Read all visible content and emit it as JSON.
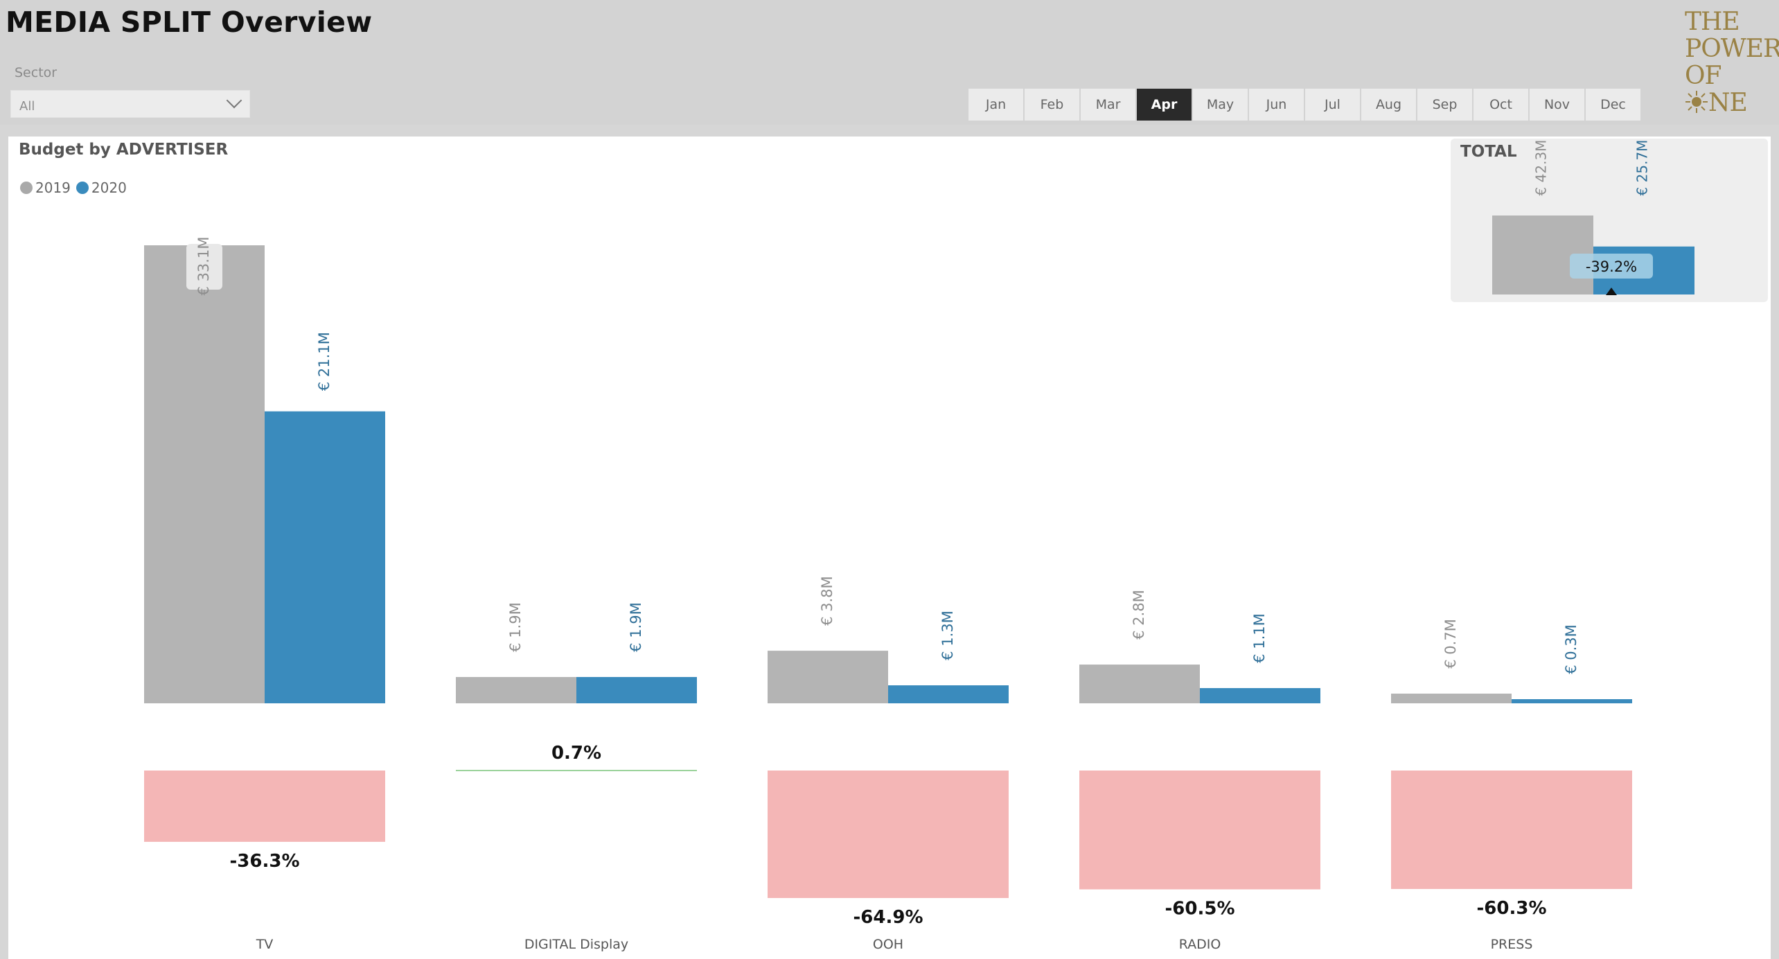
{
  "header": {
    "title": "MEDIA SPLIT Overview",
    "sector_label": "Sector",
    "sector_value": "All",
    "months": [
      "Jan",
      "Feb",
      "Mar",
      "Apr",
      "May",
      "Jun",
      "Jul",
      "Aug",
      "Sep",
      "Oct",
      "Nov",
      "Dec"
    ],
    "active_month": "Apr",
    "logo_lines": [
      "THE",
      "POWER",
      "OF",
      "NE"
    ]
  },
  "legend": {
    "items": [
      {
        "label": "2019",
        "color": "#a9a9a9"
      },
      {
        "label": "2020",
        "color": "#3a8bbd"
      }
    ]
  },
  "chart_data": [
    {
      "type": "bar",
      "title": "Budget by ADVERTISER",
      "categories": [
        "TV",
        "DIGITAL Display",
        "OOH",
        "RADIO",
        "PRESS"
      ],
      "series": [
        {
          "name": "2019",
          "values": [
            33.1,
            1.9,
            3.8,
            2.8,
            0.7
          ],
          "labels": [
            "€ 33.1M",
            "€ 1.9M",
            "€ 3.8M",
            "€ 2.8M",
            "€ 0.7M"
          ],
          "color": "#b4b4b4"
        },
        {
          "name": "2020",
          "values": [
            21.1,
            1.9,
            1.3,
            1.1,
            0.3
          ],
          "labels": [
            "€ 21.1M",
            "€ 1.9M",
            "€ 1.3M",
            "€ 1.1M",
            "€ 0.3M"
          ],
          "color": "#3a8bbd"
        }
      ],
      "change_pct": [
        -36.3,
        0.7,
        -64.9,
        -60.5,
        -60.3
      ],
      "change_labels": [
        "-36.3%",
        "0.7%",
        "-64.9%",
        "-60.5%",
        "-60.3%"
      ],
      "negative_color": "#f4b6b6",
      "positive_color": "#9cd39c",
      "ylim": [
        0,
        35
      ],
      "legend_position": "top-left"
    },
    {
      "type": "bar",
      "title": "TOTAL",
      "categories": [
        "TOTAL"
      ],
      "series": [
        {
          "name": "2019",
          "values": [
            42.3
          ],
          "labels": [
            "€ 42.3M"
          ],
          "color": "#b4b4b4"
        },
        {
          "name": "2020",
          "values": [
            25.7
          ],
          "labels": [
            "€ 25.7M"
          ],
          "color": "#3a8bbd"
        }
      ],
      "change_pct": [
        -39.2
      ],
      "change_labels": [
        "-39.2%"
      ]
    }
  ]
}
